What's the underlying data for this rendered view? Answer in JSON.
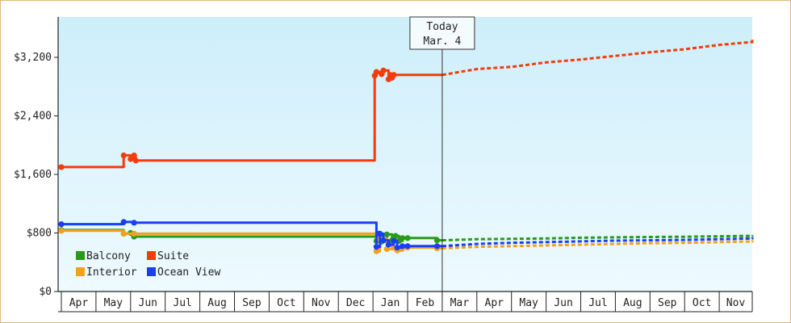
{
  "chart_data": {
    "type": "line",
    "title": "",
    "xlabel": "",
    "ylabel": "",
    "x_ticks": [
      "Apr",
      "May",
      "Jun",
      "Jul",
      "Aug",
      "Sep",
      "Oct",
      "Nov",
      "Dec",
      "Jan",
      "Feb",
      "Mar",
      "Apr",
      "May",
      "Jun",
      "Jul",
      "Aug",
      "Sep",
      "Oct",
      "Nov"
    ],
    "y_ticks": [
      "$0",
      "$800",
      "$1,600",
      "$2,400",
      "$3,200"
    ],
    "ylim": [
      0,
      3200
    ],
    "today_marker": {
      "line1": "Today",
      "line2": "Mar. 4",
      "x": 11.0
    },
    "legend": {
      "position": "bottom-left"
    },
    "series": [
      {
        "name": "Balcony",
        "color": "#2a9a1b",
        "actual": [
          [
            0.0,
            840
          ],
          [
            1.8,
            840
          ],
          [
            1.8,
            790
          ],
          [
            2.0,
            790
          ],
          [
            2.0,
            800
          ],
          [
            2.1,
            800
          ],
          [
            2.1,
            750
          ],
          [
            9.1,
            750
          ],
          [
            9.1,
            690
          ],
          [
            9.15,
            690
          ],
          [
            9.15,
            790
          ],
          [
            9.25,
            790
          ],
          [
            9.25,
            680
          ],
          [
            9.4,
            680
          ],
          [
            9.4,
            780
          ],
          [
            9.55,
            780
          ],
          [
            9.55,
            700
          ],
          [
            9.65,
            700
          ],
          [
            9.65,
            760
          ],
          [
            9.75,
            760
          ],
          [
            9.75,
            690
          ],
          [
            9.85,
            690
          ],
          [
            9.85,
            730
          ],
          [
            10.0,
            730
          ],
          [
            10.0,
            730
          ],
          [
            10.85,
            730
          ],
          [
            10.85,
            700
          ],
          [
            11.0,
            700
          ]
        ],
        "forecast": [
          [
            11.0,
            700
          ],
          [
            12.0,
            715
          ],
          [
            13.0,
            720
          ],
          [
            14.0,
            725
          ],
          [
            15.0,
            735
          ],
          [
            16.0,
            740
          ],
          [
            17.0,
            745
          ],
          [
            18.0,
            748
          ],
          [
            19.0,
            755
          ],
          [
            20.0,
            760
          ],
          [
            21.0,
            770
          ]
        ]
      },
      {
        "name": "Suite",
        "color": "#f23c0a",
        "actual": [
          [
            0.0,
            1700
          ],
          [
            1.8,
            1700
          ],
          [
            1.8,
            1860
          ],
          [
            2.0,
            1860
          ],
          [
            2.0,
            1810
          ],
          [
            2.1,
            1810
          ],
          [
            2.1,
            1860
          ],
          [
            2.15,
            1860
          ],
          [
            2.15,
            1790
          ],
          [
            9.05,
            1790
          ],
          [
            9.05,
            2950
          ],
          [
            9.1,
            2950
          ],
          [
            9.1,
            3000
          ],
          [
            9.25,
            3000
          ],
          [
            9.25,
            2970
          ],
          [
            9.3,
            2970
          ],
          [
            9.3,
            3020
          ],
          [
            9.45,
            3020
          ],
          [
            9.45,
            2900
          ],
          [
            9.5,
            2900
          ],
          [
            9.5,
            2960
          ],
          [
            9.55,
            2960
          ],
          [
            9.55,
            2920
          ],
          [
            9.6,
            2920
          ],
          [
            9.6,
            2960
          ],
          [
            11.0,
            2960
          ]
        ],
        "forecast": [
          [
            11.0,
            2960
          ],
          [
            12.0,
            3040
          ],
          [
            13.0,
            3070
          ],
          [
            14.0,
            3130
          ],
          [
            15.0,
            3170
          ],
          [
            16.0,
            3220
          ],
          [
            17.0,
            3270
          ],
          [
            18.0,
            3310
          ],
          [
            19.0,
            3370
          ],
          [
            20.0,
            3410
          ],
          [
            21.0,
            3470
          ]
        ]
      },
      {
        "name": "Interior",
        "color": "#f5a01a",
        "actual": [
          [
            0.0,
            830
          ],
          [
            1.8,
            830
          ],
          [
            1.8,
            790
          ],
          [
            2.1,
            790
          ],
          [
            2.1,
            790
          ],
          [
            9.1,
            790
          ],
          [
            9.1,
            550
          ],
          [
            9.2,
            550
          ],
          [
            9.2,
            720
          ],
          [
            9.4,
            720
          ],
          [
            9.4,
            580
          ],
          [
            9.6,
            580
          ],
          [
            9.6,
            600
          ],
          [
            9.7,
            600
          ],
          [
            9.7,
            560
          ],
          [
            9.85,
            560
          ],
          [
            9.85,
            590
          ],
          [
            10.0,
            590
          ],
          [
            10.0,
            600
          ],
          [
            10.85,
            600
          ],
          [
            10.85,
            590
          ],
          [
            11.0,
            590
          ]
        ],
        "forecast": [
          [
            11.0,
            590
          ],
          [
            12.0,
            610
          ],
          [
            13.0,
            620
          ],
          [
            14.0,
            630
          ],
          [
            15.0,
            640
          ],
          [
            16.0,
            650
          ],
          [
            17.0,
            660
          ],
          [
            18.0,
            665
          ],
          [
            19.0,
            675
          ],
          [
            20.0,
            685
          ],
          [
            21.0,
            700
          ]
        ]
      },
      {
        "name": "Ocean View",
        "color": "#1a3ef5",
        "actual": [
          [
            0.0,
            920
          ],
          [
            1.8,
            920
          ],
          [
            1.8,
            950
          ],
          [
            2.1,
            950
          ],
          [
            2.1,
            940
          ],
          [
            9.1,
            940
          ],
          [
            9.1,
            610
          ],
          [
            9.2,
            610
          ],
          [
            9.2,
            790
          ],
          [
            9.3,
            790
          ],
          [
            9.3,
            700
          ],
          [
            9.45,
            700
          ],
          [
            9.45,
            640
          ],
          [
            9.6,
            640
          ],
          [
            9.6,
            690
          ],
          [
            9.7,
            690
          ],
          [
            9.7,
            600
          ],
          [
            9.85,
            600
          ],
          [
            9.85,
            620
          ],
          [
            10.0,
            620
          ],
          [
            10.0,
            620
          ],
          [
            10.85,
            620
          ],
          [
            10.85,
            620
          ],
          [
            11.0,
            620
          ]
        ],
        "forecast": [
          [
            11.0,
            620
          ],
          [
            12.0,
            650
          ],
          [
            13.0,
            665
          ],
          [
            14.0,
            675
          ],
          [
            15.0,
            685
          ],
          [
            16.0,
            695
          ],
          [
            17.0,
            700
          ],
          [
            18.0,
            705
          ],
          [
            19.0,
            715
          ],
          [
            20.0,
            725
          ],
          [
            21.0,
            740
          ]
        ]
      }
    ]
  }
}
